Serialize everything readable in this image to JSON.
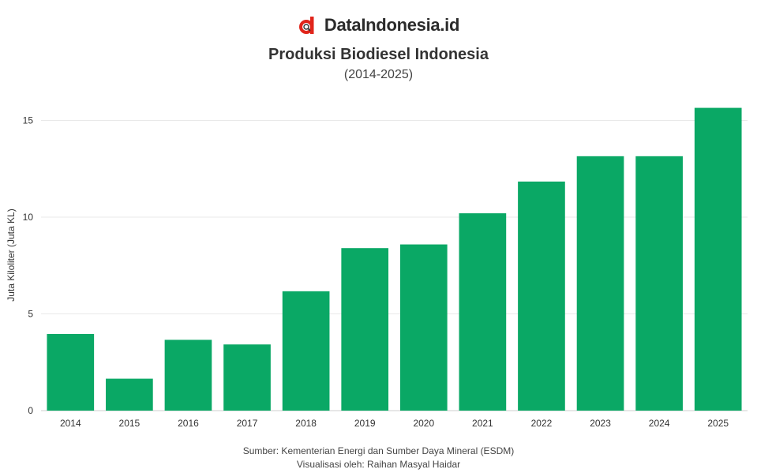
{
  "brand": {
    "name": "DataIndonesia.id",
    "logo_icon": "datainndonesia-logo-icon",
    "accent": "#e1251b"
  },
  "header": {
    "title": "Produksi Biodiesel Indonesia",
    "subtitle": "(2014-2025)"
  },
  "footer": {
    "source": "Sumber: Kementerian Energi dan Sumber Daya Mineral (ESDM)",
    "credit": "Visualisasi oleh: Raihan Masyal Haidar"
  },
  "chart_data": {
    "type": "bar",
    "categories": [
      "2014",
      "2015",
      "2016",
      "2017",
      "2018",
      "2019",
      "2020",
      "2021",
      "2022",
      "2023",
      "2024",
      "2025"
    ],
    "values": [
      3.96,
      1.65,
      3.66,
      3.42,
      6.17,
      8.4,
      8.59,
      10.2,
      11.84,
      13.15,
      13.15,
      15.65
    ],
    "ylabel": "Juta Kiloliter (Juta KL)",
    "xlabel": "",
    "ylim": [
      0,
      16
    ],
    "yticks": [
      0,
      5,
      10,
      15
    ],
    "bar_color": "#0aa865",
    "grid": true
  }
}
